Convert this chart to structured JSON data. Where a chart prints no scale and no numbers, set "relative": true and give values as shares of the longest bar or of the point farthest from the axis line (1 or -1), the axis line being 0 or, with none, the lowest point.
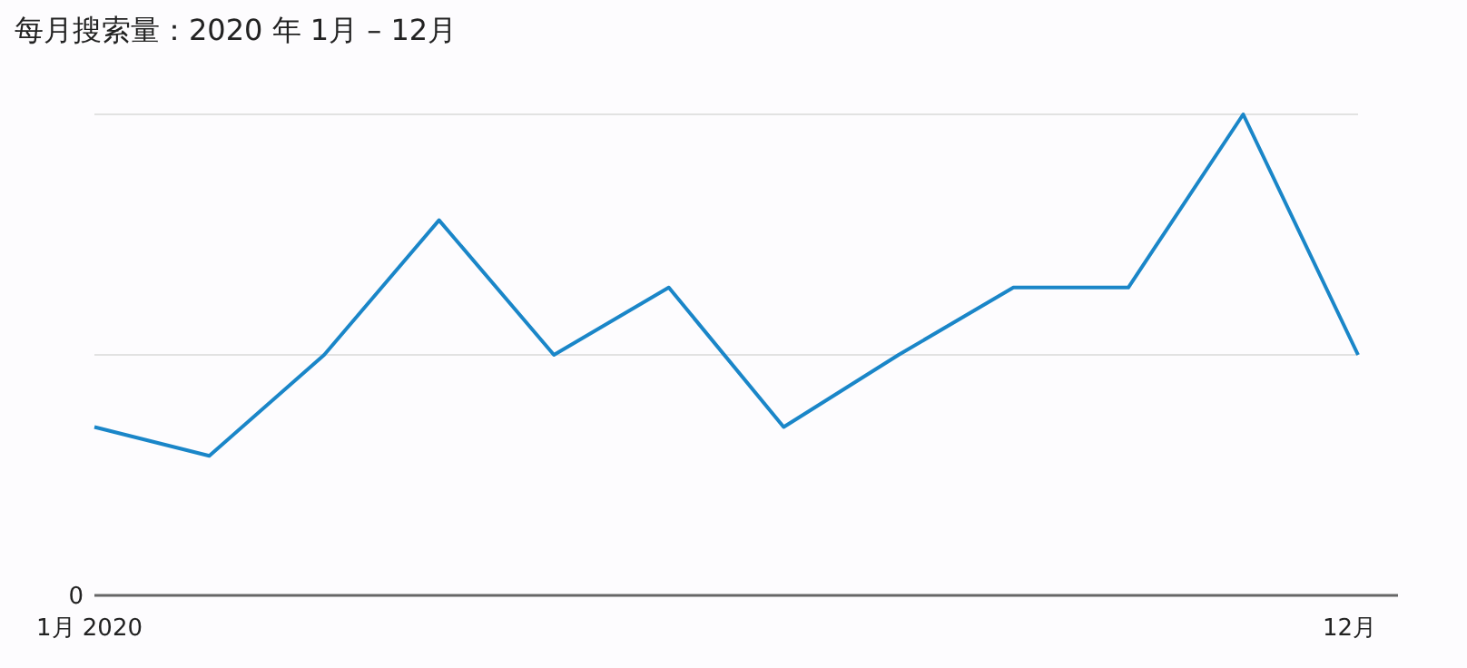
{
  "chart_data": {
    "type": "line",
    "title": "每月搜索量：2020 年 1月 – 12月",
    "relative": true,
    "categories": [
      "1月 2020",
      null,
      null,
      null,
      null,
      null,
      null,
      null,
      null,
      null,
      null,
      "12月"
    ],
    "series": [
      {
        "color": "#1a86c8",
        "values": [
          0.35,
          0.29,
          0.5,
          0.78,
          0.5,
          0.64,
          0.35,
          0.5,
          0.64,
          0.64,
          1,
          0.5
        ]
      }
    ],
    "ref_lines": [
      {
        "axis": "y",
        "value": 0.5,
        "color": "#e2e2e2"
      },
      {
        "axis": "y",
        "value": 1,
        "color": "#e2e2e2"
      }
    ],
    "annotations": [
      "0"
    ],
    "marker": "none",
    "line_style": "solid"
  }
}
